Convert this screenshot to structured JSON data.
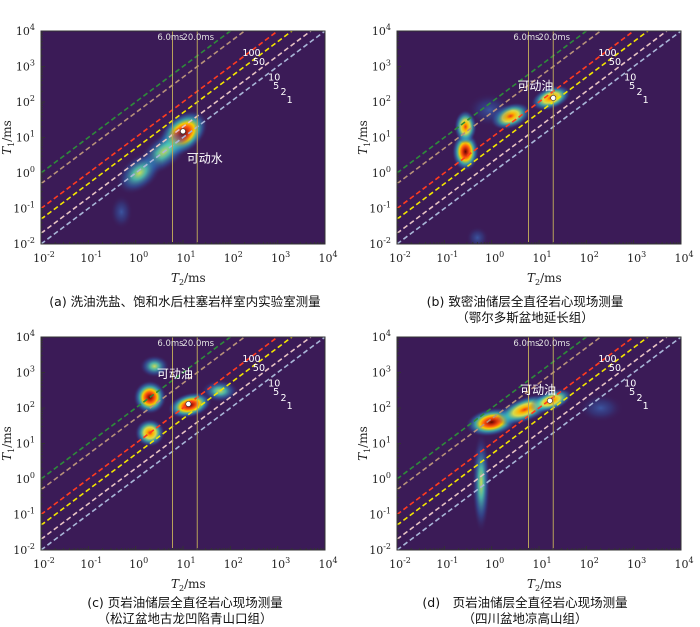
{
  "colors": {
    "background": "#3b1b57",
    "vertical_lines": "#b8a35a",
    "marker": "#ffffff",
    "annotation_text": "#ffffff",
    "ratio_lines": [
      {
        "ratio": 100,
        "color": "#2e8b3a"
      },
      {
        "ratio": 50,
        "color": "#b8927a"
      },
      {
        "ratio": 10,
        "color": "#ff3b1f"
      },
      {
        "ratio": 5,
        "color": "#f3e600"
      },
      {
        "ratio": 2,
        "color": "#e8c4c4"
      },
      {
        "ratio": 1,
        "color": "#a9b6d8"
      }
    ]
  },
  "chart_data": [
    {
      "type": "heatmap",
      "xlabel": "T2/ms",
      "ylabel": "T1/ms",
      "xlim": [
        0.01,
        10000
      ],
      "ylim": [
        0.01,
        10000
      ],
      "x_scale": "log",
      "y_scale": "log",
      "x_ticks": [
        "10-2",
        "10-1",
        "100",
        "101",
        "102",
        "103",
        "104"
      ],
      "y_ticks": [
        "10-2",
        "10-1",
        "100",
        "101",
        "102",
        "103",
        "104"
      ],
      "cutoff_labels": [
        "6.0ms",
        "20.0ms"
      ],
      "cutoffs": [
        6.0,
        20.0
      ],
      "ratio_labels": [
        "100",
        "50",
        "10",
        "5",
        "2",
        "1"
      ],
      "annotation": "可动水",
      "annotation_at": [
        12,
        2.0
      ],
      "marker": [
        10,
        15
      ],
      "caption_lines": [
        "(a) 洗油洗盐、饱和水后柱塞岩样室内实验室测量"
      ],
      "blobs": [
        {
          "x": 10,
          "y": 13,
          "sx": 0.38,
          "sy": 0.33,
          "rot": 40,
          "amp": 1.0
        },
        {
          "x": 4,
          "y": 4,
          "sx": 0.42,
          "sy": 0.3,
          "rot": 40,
          "amp": 0.45
        },
        {
          "x": 1.2,
          "y": 1.0,
          "sx": 0.35,
          "sy": 0.3,
          "rot": 40,
          "amp": 0.35
        },
        {
          "x": 0.5,
          "y": 0.08,
          "sx": 0.15,
          "sy": 0.3,
          "rot": 0,
          "amp": 0.15
        }
      ]
    },
    {
      "type": "heatmap",
      "xlabel": "T2/ms",
      "ylabel": "T1/ms",
      "xlim": [
        0.01,
        10000
      ],
      "ylim": [
        0.01,
        10000
      ],
      "x_scale": "log",
      "y_scale": "log",
      "x_ticks": [
        "10-2",
        "10-1",
        "100",
        "101",
        "102",
        "103",
        "104"
      ],
      "y_ticks": [
        "10-2",
        "10-1",
        "100",
        "101",
        "102",
        "103",
        "104"
      ],
      "cutoff_labels": [
        "6.0ms",
        "20.0ms"
      ],
      "cutoffs": [
        6.0,
        20.0
      ],
      "ratio_labels": [
        "100",
        "50",
        "10",
        "5",
        "2",
        "1"
      ],
      "annotation": "可动油",
      "annotation_at": [
        3.5,
        220
      ],
      "marker": [
        20,
        130
      ],
      "caption_lines": [
        "(b) 致密油储层全直径岩心现场测量",
        "（鄂尔多斯盆地延长组）"
      ],
      "blobs": [
        {
          "x": 0.28,
          "y": 4,
          "sx": 0.18,
          "sy": 0.35,
          "rot": 0,
          "amp": 1.0
        },
        {
          "x": 0.28,
          "y": 20,
          "sx": 0.15,
          "sy": 0.3,
          "rot": 0,
          "amp": 0.5
        },
        {
          "x": 2.5,
          "y": 40,
          "sx": 0.28,
          "sy": 0.22,
          "rot": 20,
          "amp": 0.6
        },
        {
          "x": 18,
          "y": 130,
          "sx": 0.28,
          "sy": 0.2,
          "rot": 20,
          "amp": 0.75
        },
        {
          "x": 0.9,
          "y": 60,
          "sx": 0.3,
          "sy": 0.3,
          "rot": 0,
          "amp": 0.25
        },
        {
          "x": 0.5,
          "y": 0.015,
          "sx": 0.15,
          "sy": 0.2,
          "rot": 0,
          "amp": 0.12
        }
      ]
    },
    {
      "type": "heatmap",
      "xlabel": "T2/ms",
      "ylabel": "T1/ms",
      "xlim": [
        0.01,
        10000
      ],
      "ylim": [
        0.01,
        10000
      ],
      "x_scale": "log",
      "y_scale": "log",
      "x_ticks": [
        "10-2",
        "10-1",
        "100",
        "101",
        "102",
        "103",
        "104"
      ],
      "y_ticks": [
        "10-2",
        "10-1",
        "100",
        "101",
        "102",
        "103",
        "104"
      ],
      "cutoff_labels": [
        "6.0ms",
        "20.0ms"
      ],
      "cutoffs": [
        6.0,
        20.0
      ],
      "ratio_labels": [
        "100",
        "50",
        "10",
        "5",
        "2",
        "1"
      ],
      "annotation": "可动油",
      "annotation_at": [
        2.8,
        700
      ],
      "marker": [
        13,
        130
      ],
      "caption_lines": [
        "(c) 页岩油储层全直径岩心现场测量",
        "（松辽盆地古龙凹陷青山口组）"
      ],
      "blobs": [
        {
          "x": 2.0,
          "y": 200,
          "sx": 0.22,
          "sy": 0.3,
          "rot": 0,
          "amp": 0.9
        },
        {
          "x": 14,
          "y": 120,
          "sx": 0.3,
          "sy": 0.22,
          "rot": 15,
          "amp": 1.0
        },
        {
          "x": 2.0,
          "y": 20,
          "sx": 0.2,
          "sy": 0.25,
          "rot": 0,
          "amp": 0.55
        },
        {
          "x": 2.5,
          "y": 1500,
          "sx": 0.2,
          "sy": 0.2,
          "rot": 0,
          "amp": 0.45
        },
        {
          "x": 60,
          "y": 300,
          "sx": 0.25,
          "sy": 0.2,
          "rot": 0,
          "amp": 0.3
        }
      ]
    },
    {
      "type": "heatmap",
      "xlabel": "T2/ms",
      "ylabel": "T1/ms",
      "xlim": [
        0.01,
        10000
      ],
      "ylim": [
        0.01,
        10000
      ],
      "x_scale": "log",
      "y_scale": "log",
      "x_ticks": [
        "10-2",
        "10-1",
        "100",
        "101",
        "102",
        "103",
        "104"
      ],
      "y_ticks": [
        "10-2",
        "10-1",
        "100",
        "101",
        "102",
        "103",
        "104"
      ],
      "cutoff_labels": [
        "6.0ms",
        "20.0ms"
      ],
      "cutoffs": [
        6.0,
        20.0
      ],
      "ratio_labels": [
        "100",
        "50",
        "10",
        "5",
        "2",
        "1"
      ],
      "annotation": "可动油",
      "annotation_at": [
        4,
        250
      ],
      "marker": [
        17,
        160
      ],
      "caption_lines": [
        "(d)　页岩油储层全直径岩心现场测量",
        "（四川盆地凉高山组）"
      ],
      "blobs": [
        {
          "x": 1.0,
          "y": 40,
          "sx": 0.35,
          "sy": 0.25,
          "rot": 10,
          "amp": 1.0
        },
        {
          "x": 5,
          "y": 90,
          "sx": 0.4,
          "sy": 0.22,
          "rot": 20,
          "amp": 0.6
        },
        {
          "x": 18,
          "y": 160,
          "sx": 0.3,
          "sy": 0.18,
          "rot": 20,
          "amp": 0.5
        },
        {
          "x": 0.6,
          "y": 0.8,
          "sx": 0.12,
          "sy": 0.9,
          "rot": 0,
          "amp": 0.38
        },
        {
          "x": 200,
          "y": 100,
          "sx": 0.3,
          "sy": 0.25,
          "rot": 0,
          "amp": 0.12
        }
      ]
    }
  ]
}
